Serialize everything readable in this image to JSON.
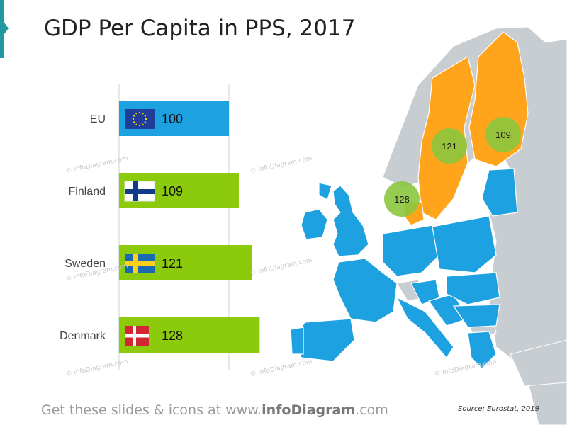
{
  "title": "GDP Per Capita in PPS, 2017",
  "footer": {
    "prefix": "Get these slides & icons at www.",
    "brand": "infoDiagram",
    "suffix": ".com"
  },
  "source": "Source: Eurostat, 2019",
  "watermark": "© infoDiagram.com",
  "colors": {
    "eu": "#1ea1e0",
    "highlight": "#8cca0c",
    "nordic": "#ffa41b",
    "nonEU": "#c8cdd2",
    "bubble": "#8cc63f"
  },
  "chart_data": {
    "type": "bar",
    "orientation": "horizontal",
    "categories": [
      "EU",
      "Finland",
      "Sweden",
      "Denmark"
    ],
    "values": [
      100,
      109,
      121,
      128
    ],
    "flags": [
      "eu-flag-icon",
      "finland-flag-icon",
      "sweden-flag-icon",
      "denmark-flag-icon"
    ],
    "bar_colors": [
      "#1ea1e0",
      "#8cca0c",
      "#8cca0c",
      "#8cca0c"
    ],
    "xlim": [
      0,
      150
    ],
    "grid": true,
    "title": "GDP Per Capita in PPS, 2017"
  },
  "map": {
    "bubbles": [
      {
        "country": "Finland",
        "value": 109
      },
      {
        "country": "Sweden",
        "value": 121
      },
      {
        "country": "Denmark",
        "value": 128
      }
    ]
  }
}
